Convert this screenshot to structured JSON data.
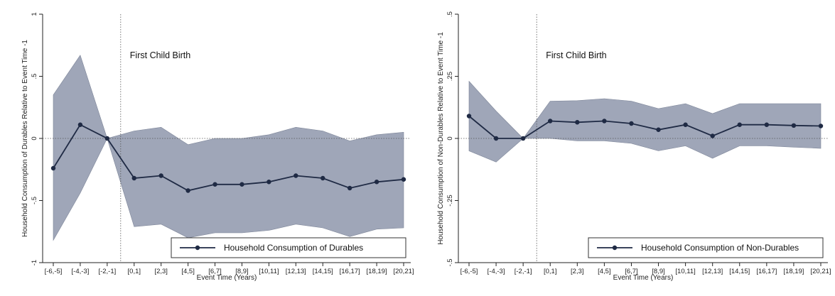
{
  "chart_data": [
    {
      "type": "line",
      "categories": [
        "[-6,-5]",
        "[-4,-3]",
        "[-2,-1]",
        "[0,1]",
        "[2,3]",
        "[4,5]",
        "[6,7]",
        "[8,9]",
        "[10,11]",
        "[12,13]",
        "[14,15]",
        "[16,17]",
        "[18,19]",
        "[20,21]"
      ],
      "series": [
        {
          "name": "Household Consumption of Durables",
          "values": [
            -0.24,
            0.11,
            0.0,
            -0.32,
            -0.3,
            -0.42,
            -0.37,
            -0.37,
            -0.35,
            -0.3,
            -0.32,
            -0.4,
            -0.35,
            -0.33
          ],
          "ci_upper": [
            0.35,
            0.67,
            0.0,
            0.06,
            0.09,
            -0.05,
            0.0,
            0.0,
            0.03,
            0.09,
            0.06,
            -0.02,
            0.03,
            0.05
          ],
          "ci_lower": [
            -0.82,
            -0.44,
            0.0,
            -0.71,
            -0.69,
            -0.8,
            -0.76,
            -0.76,
            -0.74,
            -0.69,
            -0.72,
            -0.79,
            -0.73,
            -0.72
          ]
        }
      ],
      "xlabel": "Event Time (Years)",
      "ylabel": "Household Consumption of Durables Relative to Event Time -1",
      "ylim": [
        -1,
        1
      ],
      "yticks": [
        -1,
        -0.5,
        0,
        0.5,
        1
      ],
      "ytick_labels": [
        "-1",
        "-.5",
        "0",
        ".5",
        "1"
      ],
      "event_line_category": "[-2,-1]",
      "annotation": "First Child Birth",
      "legend_position": "bottom-right",
      "band_color": "#9fa6b8",
      "line_color": "#1f2a44"
    },
    {
      "type": "line",
      "categories": [
        "[-6,-5]",
        "[-4,-3]",
        "[-2,-1]",
        "[0,1]",
        "[2,3]",
        "[4,5]",
        "[6,7]",
        "[8,9]",
        "[10,11]",
        "[12,13]",
        "[14,15]",
        "[16,17]",
        "[18,19]",
        "[20,21]"
      ],
      "series": [
        {
          "name": "Household Consumption of Non-Durables",
          "values": [
            0.09,
            0.0,
            0.0,
            0.07,
            0.065,
            0.07,
            0.06,
            0.035,
            0.055,
            0.01,
            0.055,
            0.055,
            0.052,
            0.05
          ],
          "ci_upper": [
            0.23,
            0.11,
            0.0,
            0.15,
            0.152,
            0.16,
            0.15,
            0.12,
            0.14,
            0.1,
            0.14,
            0.14,
            0.14,
            0.14
          ],
          "ci_lower": [
            -0.05,
            -0.095,
            0.0,
            0.0,
            -0.01,
            -0.01,
            -0.02,
            -0.05,
            -0.03,
            -0.08,
            -0.03,
            -0.03,
            -0.035,
            -0.04
          ]
        }
      ],
      "xlabel": "Event Time (Years)",
      "ylabel": "Household Consumption of Non-Durables Relative to Event Time -1",
      "ylim": [
        -0.5,
        0.5
      ],
      "yticks": [
        -0.5,
        -0.25,
        0,
        0.25,
        0.5
      ],
      "ytick_labels": [
        "-.5",
        "-.25",
        "0",
        ".25",
        ".5"
      ],
      "event_line_category": "[-2,-1]",
      "annotation": "First Child Birth",
      "legend_position": "bottom-right",
      "band_color": "#9fa6b8",
      "line_color": "#1f2a44"
    }
  ]
}
